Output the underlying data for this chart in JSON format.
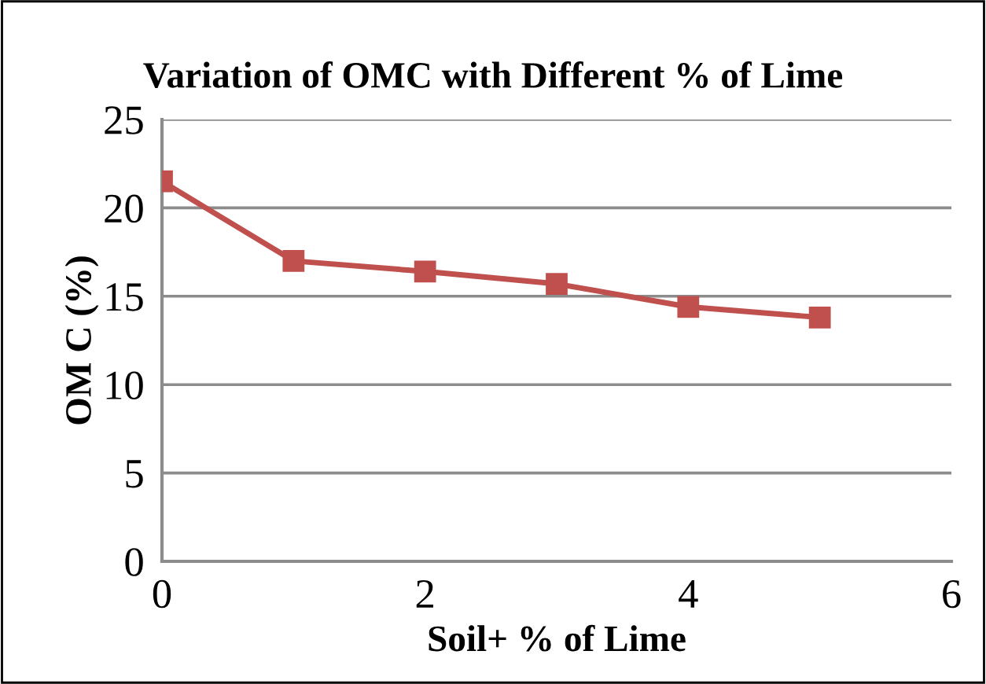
{
  "chart_data": {
    "type": "line",
    "title": "Variation of OMC with Different % of Lime",
    "xlabel": "Soil+ % of Lime",
    "ylabel": "OM C (%)",
    "x": [
      0,
      1,
      2,
      3,
      4,
      5
    ],
    "series": [
      {
        "color": "#c0504d",
        "values": [
          21.5,
          17.0,
          16.4,
          15.7,
          14.4,
          13.8
        ]
      }
    ],
    "xlim": [
      0,
      6
    ],
    "xticks": [
      0,
      2,
      4,
      6
    ],
    "ylim": [
      0,
      25
    ],
    "yticks": [
      0,
      5,
      10,
      15,
      20,
      25
    ],
    "grid": "y",
    "marker": "square",
    "line_style": "solid",
    "legend": false
  }
}
